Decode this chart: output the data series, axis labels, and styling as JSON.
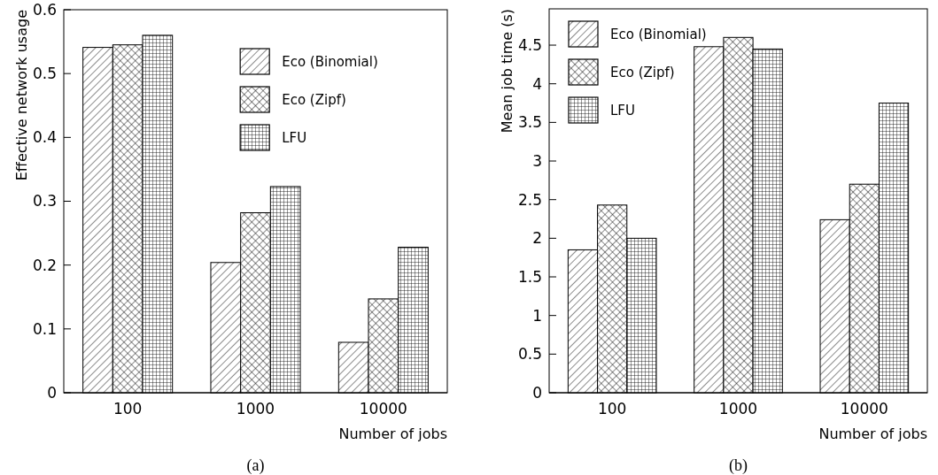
{
  "chart_data": [
    {
      "type": "bar",
      "categories": [
        "100",
        "1000",
        "10000"
      ],
      "xlabel": "Number of jobs",
      "ylabel": "Effective network usage",
      "ylim": [
        0,
        0.6
      ],
      "yticks": [
        0,
        0.1,
        0.2,
        0.3,
        0.4,
        0.5,
        0.6
      ],
      "legend": "top right",
      "annotations": [
        "(a)"
      ],
      "series": [
        {
          "name": "Eco (Binomial)",
          "color": "#000000",
          "values": [
            0.541,
            0.204,
            0.079
          ]
        },
        {
          "name": "Eco (Zipf)",
          "color": "#000000",
          "values": [
            0.545,
            0.282,
            0.147
          ]
        },
        {
          "name": "LFU",
          "color": "#000000",
          "values": [
            0.56,
            0.323,
            0.228
          ]
        }
      ]
    },
    {
      "type": "bar",
      "categories": [
        "100",
        "1000",
        "10000"
      ],
      "xlabel": "Number of jobs",
      "ylabel": "Mean job time (s)",
      "ylim": [
        0,
        4.97
      ],
      "yticks": [
        0,
        0.5,
        1,
        1.5,
        2,
        2.5,
        3,
        3.5,
        4,
        4.5
      ],
      "legend": "top left",
      "annotations": [
        "(b)"
      ],
      "series": [
        {
          "name": "Eco (Binomial)",
          "color": "#000000",
          "values": [
            1.85,
            4.48,
            2.24
          ]
        },
        {
          "name": "Eco (Zipf)",
          "color": "#000000",
          "values": [
            2.43,
            4.6,
            2.7
          ]
        },
        {
          "name": "LFU",
          "color": "#000000",
          "values": [
            2.0,
            4.45,
            3.75
          ]
        }
      ]
    }
  ]
}
